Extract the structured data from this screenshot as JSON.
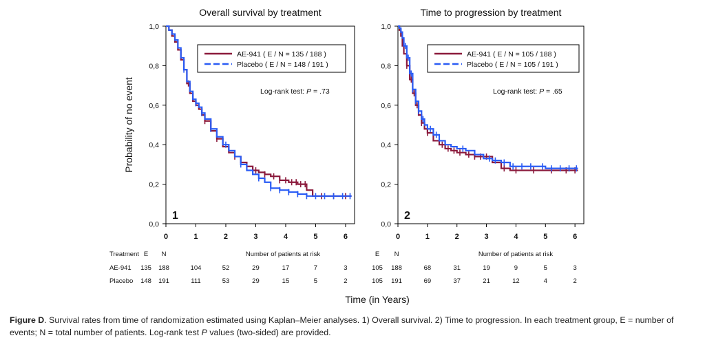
{
  "chart_data": [
    {
      "type": "line",
      "subtype": "kaplan-meier",
      "title": "Overall survival by treatment",
      "panel_label": "1",
      "ylabel": "Probability of no event",
      "xlim": [
        0,
        6.3
      ],
      "ylim": [
        0,
        1.0
      ],
      "x_ticks": [
        "0",
        "1",
        "2",
        "3",
        "4",
        "5",
        "6"
      ],
      "y_ticks": [
        "0,0",
        "0,2",
        "0,4",
        "0,6",
        "0,8",
        "1,0"
      ],
      "annotation": {
        "prefix": "Log-rank test: ",
        "p_label": "P",
        "suffix": " = .73"
      },
      "legend_position": "top-right",
      "series": [
        {
          "name": "AE-941",
          "legend": "AE-941  ( E / N = 135 / 188 )",
          "color": "#8b1a3c",
          "x": [
            0,
            0.1,
            0.2,
            0.3,
            0.4,
            0.5,
            0.6,
            0.7,
            0.8,
            0.9,
            1.0,
            1.1,
            1.2,
            1.3,
            1.5,
            1.7,
            1.9,
            2.1,
            2.3,
            2.5,
            2.7,
            2.9,
            3.1,
            3.3,
            3.5,
            3.8,
            4.1,
            4.4,
            4.6,
            4.7,
            4.9,
            5.2,
            5.5,
            5.8,
            6.2
          ],
          "y": [
            1.0,
            0.98,
            0.95,
            0.92,
            0.88,
            0.83,
            0.78,
            0.71,
            0.66,
            0.62,
            0.6,
            0.58,
            0.55,
            0.52,
            0.47,
            0.43,
            0.39,
            0.36,
            0.34,
            0.31,
            0.29,
            0.27,
            0.26,
            0.25,
            0.24,
            0.22,
            0.21,
            0.2,
            0.2,
            0.17,
            0.14,
            0.14,
            0.14,
            0.14,
            0.14
          ],
          "censor_x": [
            0.75,
            1.3,
            1.7,
            2.3,
            2.7,
            3.0,
            3.3,
            3.6,
            3.8,
            4.0,
            4.2,
            4.35,
            4.5,
            4.65,
            5.2,
            5.6,
            6.0
          ]
        },
        {
          "name": "Placebo",
          "legend": "Placebo  ( E / N = 148 / 191 )",
          "color": "#2a5cf5",
          "x": [
            0,
            0.1,
            0.2,
            0.3,
            0.4,
            0.5,
            0.6,
            0.7,
            0.8,
            0.9,
            1.0,
            1.1,
            1.2,
            1.3,
            1.5,
            1.7,
            1.9,
            2.1,
            2.3,
            2.5,
            2.7,
            2.9,
            3.1,
            3.3,
            3.5,
            3.8,
            4.1,
            4.4,
            4.7,
            5.0,
            5.3,
            5.6,
            5.9,
            6.2
          ],
          "y": [
            1.0,
            0.98,
            0.96,
            0.93,
            0.89,
            0.84,
            0.78,
            0.72,
            0.67,
            0.63,
            0.61,
            0.59,
            0.56,
            0.53,
            0.48,
            0.44,
            0.4,
            0.37,
            0.34,
            0.3,
            0.27,
            0.25,
            0.23,
            0.21,
            0.18,
            0.17,
            0.16,
            0.15,
            0.14,
            0.14,
            0.14,
            0.14,
            0.14,
            0.14
          ],
          "censor_x": [
            0.6,
            1.0,
            1.2,
            1.5,
            2.0,
            2.5,
            3.1,
            3.5,
            3.8,
            4.1,
            4.4,
            4.7,
            5.0,
            5.3,
            5.6,
            5.9,
            6.15
          ]
        }
      ],
      "risk_table": {
        "header": {
          "treatment": "Treatment",
          "e": "E",
          "n": "N",
          "title": "Number of patients at risk"
        },
        "rows": [
          {
            "label": "AE-941",
            "e": "135",
            "n": "188",
            "values": [
              "104",
              "52",
              "29",
              "17",
              "7",
              "3"
            ]
          },
          {
            "label": "Placebo",
            "e": "148",
            "n": "191",
            "values": [
              "111",
              "53",
              "29",
              "15",
              "5",
              "2"
            ]
          }
        ]
      }
    },
    {
      "type": "line",
      "subtype": "kaplan-meier",
      "title": "Time to progression by treatment",
      "panel_label": "2",
      "ylabel": "",
      "xlim": [
        0,
        6.3
      ],
      "ylim": [
        0,
        1.0
      ],
      "x_ticks": [
        "0",
        "1",
        "2",
        "3",
        "4",
        "5",
        "6"
      ],
      "y_ticks": [
        "0,0",
        "0,2",
        "0,4",
        "0,6",
        "0,8",
        "1,0"
      ],
      "annotation": {
        "prefix": "Log-rank test: ",
        "p_label": "P",
        "suffix": " = .65"
      },
      "legend_position": "top-right",
      "series": [
        {
          "name": "AE-941",
          "legend": "AE-941  ( E / N = 105 / 188 )",
          "color": "#8b1a3c",
          "x": [
            0,
            0.05,
            0.1,
            0.15,
            0.2,
            0.3,
            0.4,
            0.5,
            0.6,
            0.7,
            0.8,
            0.9,
            1.0,
            1.2,
            1.4,
            1.6,
            1.8,
            2.0,
            2.3,
            2.6,
            2.9,
            3.2,
            3.5,
            3.8,
            4.2,
            4.6,
            5.0,
            5.5,
            6.1
          ],
          "y": [
            1.0,
            0.98,
            0.95,
            0.9,
            0.86,
            0.8,
            0.73,
            0.66,
            0.6,
            0.55,
            0.51,
            0.48,
            0.46,
            0.42,
            0.4,
            0.38,
            0.37,
            0.36,
            0.35,
            0.34,
            0.34,
            0.31,
            0.28,
            0.27,
            0.27,
            0.27,
            0.27,
            0.27,
            0.27
          ],
          "censor_x": [
            0.3,
            0.45,
            0.55,
            0.65,
            0.8,
            1.0,
            1.5,
            1.7,
            1.9,
            2.1,
            2.4,
            2.6,
            2.8,
            3.0,
            3.6,
            4.0,
            4.6,
            5.2,
            5.7,
            6.0
          ]
        },
        {
          "name": "Placebo",
          "legend": "Placebo  ( E / N = 105 / 191 )",
          "color": "#2a5cf5",
          "x": [
            0,
            0.05,
            0.1,
            0.15,
            0.2,
            0.3,
            0.4,
            0.5,
            0.6,
            0.7,
            0.8,
            0.9,
            1.0,
            1.2,
            1.4,
            1.6,
            1.8,
            2.0,
            2.3,
            2.6,
            2.9,
            3.2,
            3.5,
            3.8,
            4.2,
            4.6,
            5.0,
            5.5,
            6.1
          ],
          "y": [
            1.0,
            0.99,
            0.97,
            0.94,
            0.9,
            0.84,
            0.76,
            0.68,
            0.62,
            0.57,
            0.53,
            0.5,
            0.48,
            0.45,
            0.42,
            0.4,
            0.39,
            0.38,
            0.37,
            0.35,
            0.33,
            0.32,
            0.31,
            0.29,
            0.29,
            0.29,
            0.28,
            0.28,
            0.28
          ],
          "censor_x": [
            0.25,
            0.35,
            0.45,
            0.5,
            0.6,
            0.7,
            0.85,
            1.1,
            1.3,
            2.2,
            3.1,
            3.3,
            3.6,
            3.9,
            4.2,
            4.5,
            4.9,
            5.2,
            5.5,
            5.8,
            6.05
          ]
        }
      ],
      "risk_table": {
        "header": {
          "e": "E",
          "n": "N",
          "title": "Number of patients at risk"
        },
        "rows": [
          {
            "label": "AE-941",
            "e": "105",
            "n": "188",
            "values": [
              "68",
              "31",
              "19",
              "9",
              "5",
              "3"
            ]
          },
          {
            "label": "Placebo",
            "e": "105",
            "n": "191",
            "values": [
              "69",
              "37",
              "21",
              "12",
              "4",
              "2"
            ]
          }
        ]
      }
    }
  ],
  "xlabel": "Time (in Years)",
  "caption": {
    "figure_label": "Figure D",
    "text_1": ". Survival rates from time of randomization estimated using Kaplan–Meier analyses. 1) Overall survival. 2) Time to progression. In each treatment group, E = number of events; N = total number of patients. Log-rank test ",
    "p_italic": "P",
    "text_2": " values (two-sided) are provided."
  }
}
